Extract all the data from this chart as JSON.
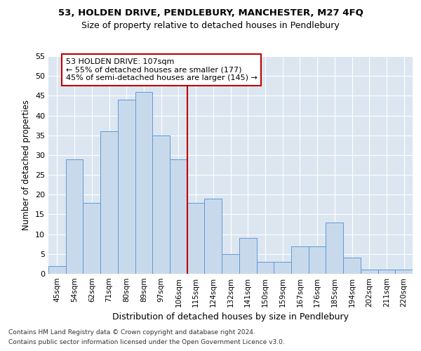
{
  "title1": "53, HOLDEN DRIVE, PENDLEBURY, MANCHESTER, M27 4FQ",
  "title2": "Size of property relative to detached houses in Pendlebury",
  "xlabel": "Distribution of detached houses by size in Pendlebury",
  "ylabel": "Number of detached properties",
  "categories": [
    "45sqm",
    "54sqm",
    "62sqm",
    "71sqm",
    "80sqm",
    "89sqm",
    "97sqm",
    "106sqm",
    "115sqm",
    "124sqm",
    "132sqm",
    "141sqm",
    "150sqm",
    "159sqm",
    "167sqm",
    "176sqm",
    "185sqm",
    "194sqm",
    "202sqm",
    "211sqm",
    "220sqm"
  ],
  "values": [
    2,
    29,
    18,
    36,
    44,
    46,
    35,
    29,
    18,
    19,
    5,
    9,
    3,
    3,
    7,
    7,
    13,
    4,
    1,
    1,
    1
  ],
  "bar_color": "#c9d9ec",
  "bar_edge_color": "#5b9bd5",
  "vline_color": "#c00000",
  "annotation_text": "53 HOLDEN DRIVE: 107sqm\n← 55% of detached houses are smaller (177)\n45% of semi-detached houses are larger (145) →",
  "annotation_box_color": "#ffffff",
  "annotation_box_edge_color": "#c00000",
  "ylim": [
    0,
    55
  ],
  "yticks": [
    0,
    5,
    10,
    15,
    20,
    25,
    30,
    35,
    40,
    45,
    50,
    55
  ],
  "background_color": "#dce6f1",
  "grid_color": "#ffffff",
  "footnote1": "Contains HM Land Registry data © Crown copyright and database right 2024.",
  "footnote2": "Contains public sector information licensed under the Open Government Licence v3.0."
}
